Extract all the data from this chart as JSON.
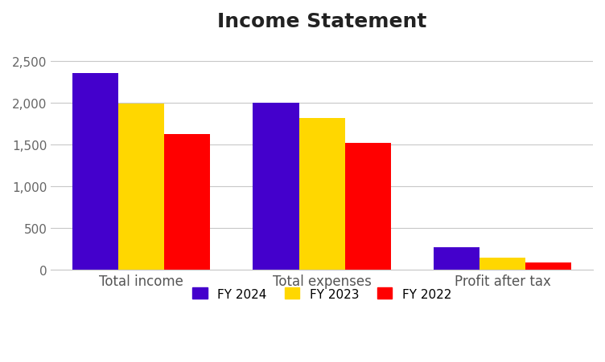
{
  "title": "Income Statement",
  "categories": [
    "Total income",
    "Total expenses",
    "Profit after tax"
  ],
  "series": [
    {
      "label": "FY 2024",
      "color": "#4400CC",
      "values": [
        2350,
        2000,
        270
      ]
    },
    {
      "label": "FY 2023",
      "color": "#FFD700",
      "values": [
        1990,
        1810,
        140
      ]
    },
    {
      "label": "FY 2022",
      "color": "#FF0000",
      "values": [
        1620,
        1520,
        88
      ]
    }
  ],
  "ylim": [
    0,
    2750
  ],
  "yticks": [
    0,
    500,
    1000,
    1500,
    2000,
    2500
  ],
  "ytick_labels": [
    "0",
    "500",
    "1,000",
    "1,500",
    "2,000",
    "2,500"
  ],
  "background_color": "#FFFFFF",
  "grid_color": "#C8C8C8",
  "title_fontsize": 18,
  "tick_fontsize": 11,
  "legend_fontsize": 11,
  "bar_width": 0.28,
  "figsize": [
    7.52,
    4.52
  ],
  "dpi": 100
}
